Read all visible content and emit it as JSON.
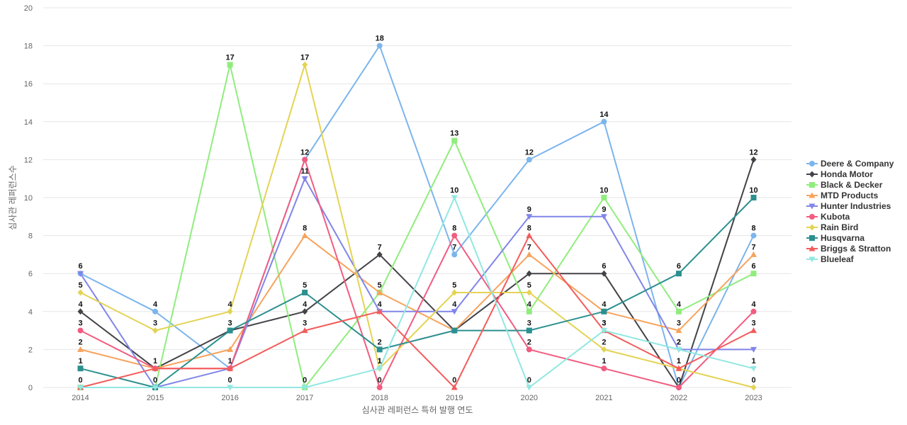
{
  "chart_data": {
    "type": "line",
    "title": "",
    "xlabel": "심사관 레퍼런스 특허 발행 연도",
    "ylabel": "심사관 레퍼런스수",
    "ylim": [
      0,
      20
    ],
    "yticks": [
      0,
      2,
      4,
      6,
      8,
      10,
      12,
      14,
      16,
      18,
      20
    ],
    "grid": true,
    "legend_position": "right",
    "categories": [
      "2014",
      "2015",
      "2016",
      "2017",
      "2018",
      "2019",
      "2020",
      "2021",
      "2022",
      "2023"
    ],
    "series": [
      {
        "name": "Deere & Company",
        "color": "#7cb5ec",
        "marker": "circle",
        "values": [
          6,
          4,
          1,
          12,
          18,
          7,
          12,
          14,
          0,
          8
        ]
      },
      {
        "name": "Honda Motor",
        "color": "#434348",
        "marker": "diamond",
        "values": [
          4,
          1,
          3,
          4,
          7,
          3,
          6,
          6,
          0,
          12
        ]
      },
      {
        "name": "Black & Decker",
        "color": "#90ed7d",
        "marker": "square",
        "values": [
          0,
          0,
          17,
          0,
          5,
          13,
          4,
          10,
          4,
          6
        ]
      },
      {
        "name": "MTD Products",
        "color": "#f7a35c",
        "marker": "triangle",
        "values": [
          2,
          1,
          2,
          8,
          5,
          3,
          7,
          4,
          3,
          7
        ]
      },
      {
        "name": "Hunter Industries",
        "color": "#8085e9",
        "marker": "triangle-down",
        "values": [
          6,
          0,
          1,
          11,
          4,
          4,
          9,
          9,
          2,
          2
        ]
      },
      {
        "name": "Kubota",
        "color": "#f15c80",
        "marker": "circle",
        "values": [
          3,
          1,
          1,
          12,
          0,
          8,
          2,
          1,
          0,
          4
        ]
      },
      {
        "name": "Rain Bird",
        "color": "#e4d354",
        "marker": "diamond",
        "values": [
          5,
          3,
          4,
          17,
          1,
          5,
          5,
          2,
          1,
          0
        ]
      },
      {
        "name": "Husqvarna",
        "color": "#2b908f",
        "marker": "square",
        "values": [
          1,
          0,
          3,
          5,
          2,
          3,
          3,
          4,
          6,
          10
        ]
      },
      {
        "name": "Briggs & Stratton",
        "color": "#f45b5b",
        "marker": "triangle",
        "values": [
          0,
          1,
          1,
          3,
          4,
          0,
          8,
          3,
          1,
          3
        ]
      },
      {
        "name": "Blueleaf",
        "color": "#91e8e1",
        "marker": "triangle-down",
        "values": [
          0,
          0,
          0,
          0,
          1,
          10,
          0,
          3,
          2,
          1
        ]
      }
    ],
    "data_labels": [
      {
        "series": 0,
        "index": 0,
        "text": "6"
      },
      {
        "series": 0,
        "index": 1,
        "text": "4"
      },
      {
        "series": 0,
        "index": 4,
        "text": "18"
      },
      {
        "series": 0,
        "index": 5,
        "text": "7"
      },
      {
        "series": 0,
        "index": 6,
        "text": "12"
      },
      {
        "series": 0,
        "index": 7,
        "text": "14"
      },
      {
        "series": 0,
        "index": 9,
        "text": "8"
      },
      {
        "series": 1,
        "index": 0,
        "text": "4"
      },
      {
        "series": 1,
        "index": 1,
        "text": "1"
      },
      {
        "series": 1,
        "index": 3,
        "text": "4"
      },
      {
        "series": 1,
        "index": 4,
        "text": "7"
      },
      {
        "series": 1,
        "index": 7,
        "text": "6"
      },
      {
        "series": 1,
        "index": 8,
        "text": "0"
      },
      {
        "series": 1,
        "index": 9,
        "text": "12"
      },
      {
        "series": 2,
        "index": 2,
        "text": "17"
      },
      {
        "series": 2,
        "index": 3,
        "text": "0"
      },
      {
        "series": 2,
        "index": 5,
        "text": "13"
      },
      {
        "series": 2,
        "index": 6,
        "text": "4"
      },
      {
        "series": 2,
        "index": 7,
        "text": "10"
      },
      {
        "series": 2,
        "index": 8,
        "text": "4"
      },
      {
        "series": 2,
        "index": 9,
        "text": "6"
      },
      {
        "series": 3,
        "index": 0,
        "text": "2"
      },
      {
        "series": 3,
        "index": 3,
        "text": "8"
      },
      {
        "series": 3,
        "index": 4,
        "text": "5"
      },
      {
        "series": 3,
        "index": 6,
        "text": "7"
      },
      {
        "series": 3,
        "index": 7,
        "text": "4"
      },
      {
        "series": 3,
        "index": 8,
        "text": "3"
      },
      {
        "series": 3,
        "index": 9,
        "text": "7"
      },
      {
        "series": 4,
        "index": 3,
        "text": "11"
      },
      {
        "series": 4,
        "index": 4,
        "text": "4"
      },
      {
        "series": 4,
        "index": 5,
        "text": "4"
      },
      {
        "series": 4,
        "index": 6,
        "text": "9"
      },
      {
        "series": 4,
        "index": 7,
        "text": "9"
      },
      {
        "series": 4,
        "index": 8,
        "text": "2"
      },
      {
        "series": 5,
        "index": 0,
        "text": "3"
      },
      {
        "series": 5,
        "index": 3,
        "text": "12"
      },
      {
        "series": 5,
        "index": 4,
        "text": "0"
      },
      {
        "series": 5,
        "index": 5,
        "text": "8"
      },
      {
        "series": 5,
        "index": 6,
        "text": "2"
      },
      {
        "series": 5,
        "index": 7,
        "text": "1"
      },
      {
        "series": 5,
        "index": 9,
        "text": "4"
      },
      {
        "series": 6,
        "index": 0,
        "text": "5"
      },
      {
        "series": 6,
        "index": 1,
        "text": "3"
      },
      {
        "series": 6,
        "index": 2,
        "text": "4"
      },
      {
        "series": 6,
        "index": 3,
        "text": "17"
      },
      {
        "series": 6,
        "index": 4,
        "text": "1"
      },
      {
        "series": 6,
        "index": 5,
        "text": "5"
      },
      {
        "series": 6,
        "index": 6,
        "text": "5"
      },
      {
        "series": 6,
        "index": 7,
        "text": "2"
      },
      {
        "series": 6,
        "index": 8,
        "text": "1"
      },
      {
        "series": 6,
        "index": 9,
        "text": "0"
      },
      {
        "series": 7,
        "index": 0,
        "text": "1"
      },
      {
        "series": 7,
        "index": 2,
        "text": "3"
      },
      {
        "series": 7,
        "index": 3,
        "text": "5"
      },
      {
        "series": 7,
        "index": 4,
        "text": "2"
      },
      {
        "series": 7,
        "index": 6,
        "text": "3"
      },
      {
        "series": 7,
        "index": 8,
        "text": "6"
      },
      {
        "series": 7,
        "index": 9,
        "text": "10"
      },
      {
        "series": 8,
        "index": 0,
        "text": "0"
      },
      {
        "series": 8,
        "index": 2,
        "text": "1"
      },
      {
        "series": 8,
        "index": 3,
        "text": "3"
      },
      {
        "series": 8,
        "index": 5,
        "text": "0"
      },
      {
        "series": 8,
        "index": 6,
        "text": "8"
      },
      {
        "series": 8,
        "index": 7,
        "text": "3"
      },
      {
        "series": 8,
        "index": 8,
        "text": "1"
      },
      {
        "series": 8,
        "index": 9,
        "text": "3"
      },
      {
        "series": 9,
        "index": 1,
        "text": "0"
      },
      {
        "series": 9,
        "index": 2,
        "text": "0"
      },
      {
        "series": 9,
        "index": 4,
        "text": "1"
      },
      {
        "series": 9,
        "index": 5,
        "text": "10"
      },
      {
        "series": 9,
        "index": 6,
        "text": "0"
      },
      {
        "series": 9,
        "index": 7,
        "text": "3"
      },
      {
        "series": 9,
        "index": 8,
        "text": "2"
      },
      {
        "series": 9,
        "index": 9,
        "text": "1"
      }
    ]
  }
}
